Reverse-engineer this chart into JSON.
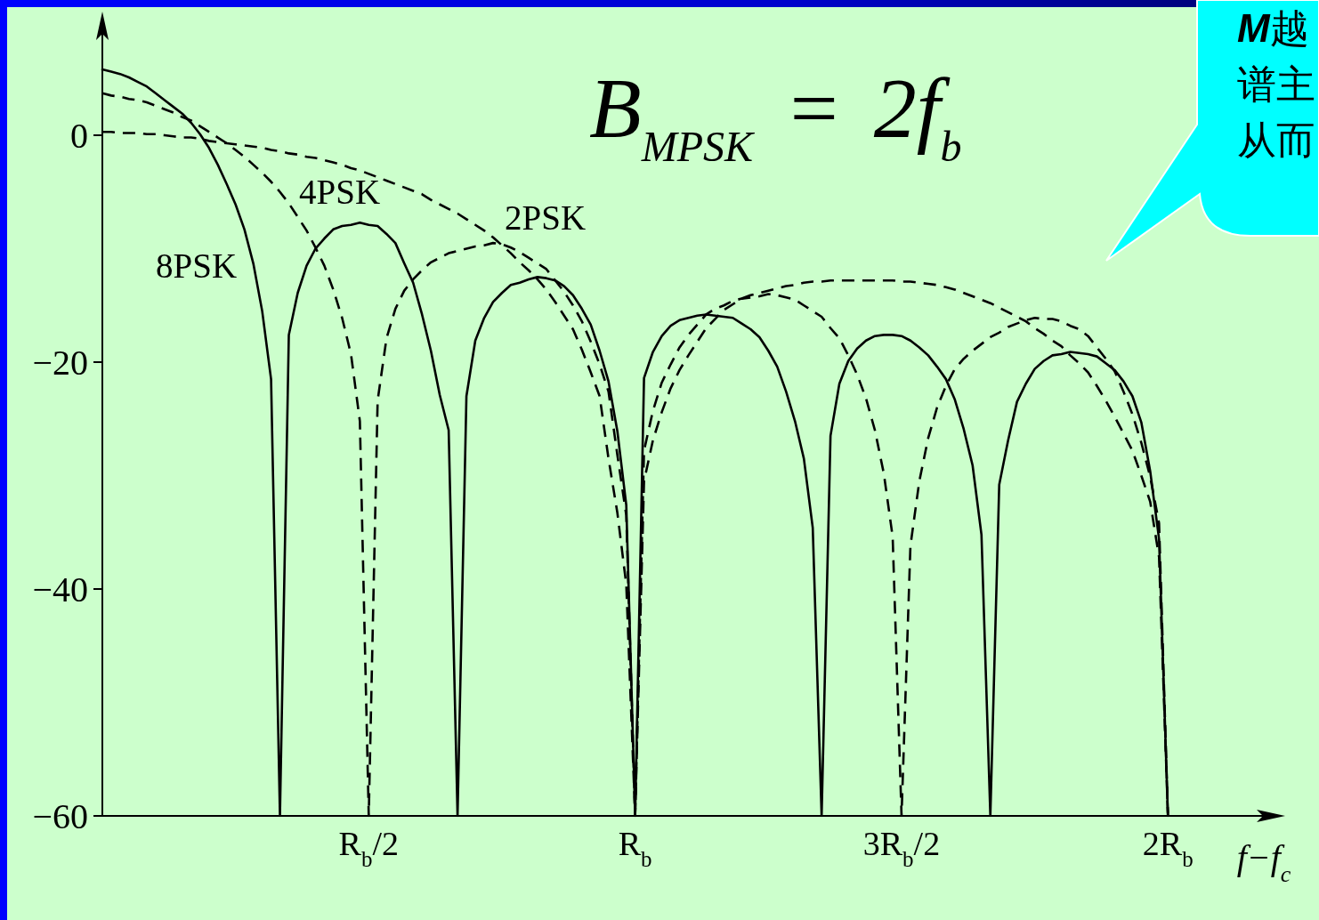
{
  "chart_data": {
    "type": "line",
    "annotations": [
      "B$_{MPSK}$ = 2f$_{b}$",
      "M越",
      "谱主",
      "从而"
    ],
    "xlabel": "f−f$_{c}$",
    "categories": [
      null,
      null,
      null,
      null,
      null,
      null,
      null,
      null,
      null,
      null,
      null,
      null,
      null,
      null,
      null,
      null,
      null,
      null,
      null,
      null,
      null,
      null,
      null,
      null,
      null,
      null,
      null,
      null,
      null,
      null,
      "R$_{b}$/2",
      null,
      null,
      null,
      null,
      null,
      null,
      null,
      null,
      null,
      null,
      null,
      null,
      null,
      null,
      null,
      null,
      null,
      null,
      null,
      null,
      null,
      null,
      null,
      null,
      null,
      null,
      null,
      null,
      null,
      "R$_{b}$",
      null,
      null,
      null,
      null,
      null,
      null,
      null,
      null,
      null,
      null,
      null,
      null,
      null,
      null,
      null,
      null,
      null,
      null,
      null,
      null,
      null,
      null,
      null,
      null,
      null,
      null,
      null,
      null,
      null,
      "3R$_{b}$/2",
      null,
      null,
      null,
      null,
      null,
      null,
      null,
      null,
      null,
      null,
      null,
      null,
      null,
      null,
      null,
      null,
      null,
      null,
      null,
      null,
      null,
      null,
      null,
      null,
      null,
      null,
      null,
      null,
      null,
      "2R$_{b}$",
      null,
      null,
      null,
      null,
      null,
      null,
      null,
      null,
      null,
      null,
      null,
      null
    ],
    "ylim": [
      -60,
      10
    ],
    "yticks": [
      0,
      {
        "value": -20,
        "label": "−20"
      },
      {
        "value": -40,
        "label": "−40"
      },
      {
        "value": -60,
        "label": "−60"
      }
    ],
    "marker": "none",
    "legend": false,
    "grid": false,
    "series": [
      {
        "name": "8PSK",
        "color": "#000000",
        "line_style": "solid",
        "values": [
          5.8,
          5.6,
          5.4,
          5.1,
          4.7,
          4.3,
          3.7,
          3.1,
          2.5,
          1.9,
          1.1,
          0.1,
          -1.1,
          -2.6,
          -4.3,
          -6.1,
          -8.3,
          -11.3,
          -15.5,
          -21.5,
          -60,
          -17.6,
          -13.9,
          -11.5,
          -10.0,
          -9.1,
          -8.3,
          -8.0,
          -7.9,
          -7.7,
          -7.9,
          -8.0,
          -8.7,
          -9.5,
          -11.3,
          -13.0,
          -15.8,
          -19.0,
          -22.9,
          -26,
          -60,
          -23,
          -18.1,
          -16.1,
          -14.7,
          -13.9,
          -13.2,
          -13.0,
          -12.7,
          -12.5,
          -12.6,
          -12.8,
          -13.3,
          -14.1,
          -15.3,
          -16.7,
          -19.0,
          -21.7,
          -26.1,
          -32.6,
          -60,
          -21.4,
          -19.1,
          -17.7,
          -16.8,
          -16.3,
          -16.1,
          -15.9,
          -15.8,
          -15.9,
          -16.0,
          -16.1,
          -16.6,
          -17.1,
          -17.8,
          -19.0,
          -20.4,
          -22.6,
          -25.2,
          -28.5,
          -34.6,
          -60,
          -26.5,
          -21.9,
          -19.9,
          -18.8,
          -18.1,
          -17.7,
          -17.6,
          -17.6,
          -17.7,
          -18.1,
          -18.7,
          -19.4,
          -20.4,
          -21.5,
          -23.3,
          -25.9,
          -29.1,
          -35.2,
          -60,
          -30.8,
          -26.9,
          -23.5,
          -21.9,
          -20.6,
          -19.9,
          -19.4,
          -19.3,
          -19.1,
          -19.2,
          -19.3,
          -19.5,
          -20.1,
          -20.7,
          -21.7,
          -23.0,
          -25.3,
          -29.6,
          -35.6,
          -60,
          null,
          null,
          null,
          null,
          null,
          null,
          null,
          null,
          null,
          null,
          null,
          null
        ]
      },
      {
        "name": "4PSK",
        "color": "#000000",
        "line_style": "dashed",
        "values": [
          3.7,
          3.5,
          3.4,
          3.2,
          3.1,
          2.9,
          2.6,
          2.3,
          2.0,
          1.6,
          1.3,
          0.8,
          0.3,
          -0.2,
          -0.7,
          -1.3,
          -1.9,
          -2.6,
          -3.3,
          -4.1,
          -5.0,
          -6.0,
          -7.2,
          -8.4,
          -9.9,
          -11.5,
          -13.6,
          -16.1,
          -19.3,
          -25.2,
          -60,
          -23.4,
          -17.9,
          -15.3,
          -13.7,
          -12.7,
          -11.9,
          -11.2,
          -10.8,
          -10.4,
          -10.2,
          -10.0,
          -9.8,
          -9.7,
          -9.5,
          -9.6,
          -9.9,
          -10.3,
          -10.8,
          -11.3,
          -11.8,
          -12.8,
          -13.8,
          -15.0,
          -16.4,
          -18.2,
          -20.2,
          -22.6,
          -28.2,
          -33.5,
          -60,
          -27.8,
          -24.3,
          -21.8,
          -20.2,
          -18.7,
          -17.6,
          -16.7,
          -15.8,
          -15.3,
          -15.0,
          -14.6,
          -14.4,
          -14.3,
          -14.2,
          -14.0,
          -14.1,
          -14.3,
          -14.5,
          -15.0,
          -15.5,
          -16.0,
          -17.0,
          -17.9,
          -19.4,
          -21.1,
          -23.2,
          -26.0,
          -29.8,
          -35.4,
          -60,
          -36.2,
          -30.5,
          -26.7,
          -24.0,
          -22.1,
          -20.6,
          -19.7,
          -19.0,
          -18.4,
          -17.8,
          -17.4,
          -16.9,
          -16.6,
          -16.3,
          -16.1,
          -16.2,
          -16.2,
          -16.4,
          -16.8,
          -17.1,
          -17.7,
          -18.7,
          -19.7,
          -20.8,
          -22.6,
          -24.6,
          -27.1,
          -30.1,
          -34.2,
          -60,
          null,
          null,
          null,
          null,
          null,
          null,
          null,
          null,
          null,
          null,
          null,
          null
        ]
      },
      {
        "name": "2PSK",
        "color": "#000000",
        "line_style": "dashed",
        "values": [
          0.3,
          0.3,
          0.2,
          0.2,
          0.2,
          0.1,
          0.1,
          0.0,
          -0.1,
          -0.2,
          -0.2,
          -0.3,
          -0.5,
          -0.6,
          -0.7,
          -0.8,
          -0.9,
          -1.0,
          -1.1,
          -1.3,
          -1.4,
          -1.6,
          -1.7,
          -1.9,
          -2.0,
          -2.2,
          -2.4,
          -2.6,
          -2.9,
          -3.1,
          -3.4,
          -3.7,
          -4.0,
          -4.3,
          -4.6,
          -4.9,
          -5.2,
          -5.7,
          -6.1,
          -6.5,
          -6.9,
          -7.4,
          -7.9,
          -8.4,
          -9.0,
          -9.7,
          -10.4,
          -11.2,
          -11.9,
          -12.7,
          -13.6,
          -14.7,
          -15.9,
          -17.1,
          -18.9,
          -20.9,
          -23.0,
          -28.5,
          -33.3,
          -39.6,
          -60,
          -30.5,
          -26.9,
          -24.4,
          -22.3,
          -20.7,
          -19.4,
          -18.2,
          -17.0,
          -16.2,
          -15.4,
          -14.9,
          -14.4,
          -14.1,
          -13.9,
          -13.7,
          -13.5,
          -13.3,
          -13.2,
          -13.0,
          -12.9,
          -12.9,
          -12.8,
          -12.8,
          -12.8,
          -12.8,
          -12.8,
          -12.8,
          -12.8,
          -12.8,
          -12.9,
          -12.9,
          -13.0,
          -13.1,
          -13.2,
          -13.4,
          -13.6,
          -13.9,
          -14.2,
          -14.5,
          -14.8,
          -15.2,
          -15.6,
          -16.0,
          -16.4,
          -17.0,
          -17.5,
          -18.1,
          -18.6,
          -19.4,
          -20.1,
          -20.9,
          -22.1,
          -23.4,
          -24.8,
          -26.3,
          -27.8,
          -30.0,
          -32.3,
          -37.2,
          -60,
          null,
          null,
          null,
          null,
          null,
          null,
          null,
          null,
          null,
          null,
          null,
          null
        ]
      }
    ]
  }
}
